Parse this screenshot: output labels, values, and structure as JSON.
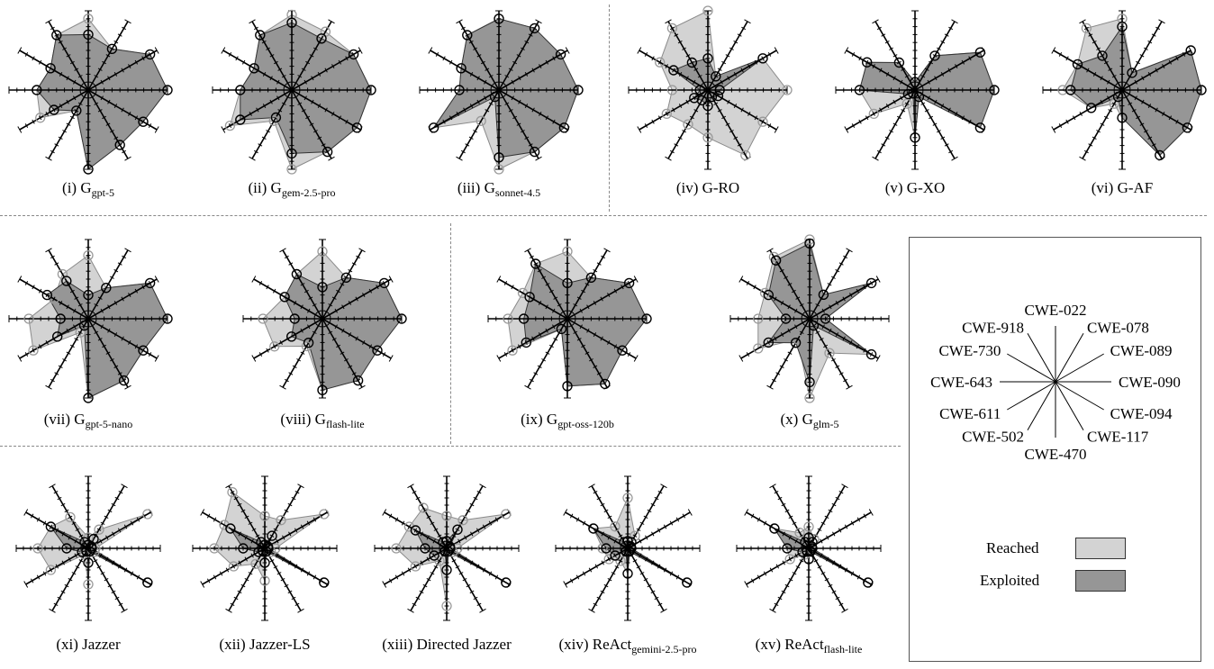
{
  "axes": [
    "CWE-022",
    "CWE-078",
    "CWE-089",
    "CWE-090",
    "CWE-094",
    "CWE-117",
    "CWE-470",
    "CWE-502",
    "CWE-611",
    "CWE-643",
    "CWE-730",
    "CWE-918"
  ],
  "legend": {
    "reached_label": "Reached",
    "exploited_label": "Exploited",
    "reached_color": "#d3d3d3",
    "exploited_color": "#969696"
  },
  "chart_data": [
    {
      "type": "radar",
      "roman": "(i)",
      "name": "G",
      "sub": "gpt-5",
      "reached": [
        0.9,
        0.6,
        0.9,
        1.0,
        0.8,
        0.8,
        1.0,
        0.3,
        0.7,
        0.65,
        0.55,
        0.8
      ],
      "exploited": [
        0.7,
        0.6,
        0.9,
        1.0,
        0.8,
        0.8,
        1.0,
        0.3,
        0.5,
        0.65,
        0.55,
        0.8
      ]
    },
    {
      "type": "radar",
      "roman": "(ii)",
      "name": "G",
      "sub": "gem-2.5-pro",
      "reached": [
        0.95,
        0.85,
        0.9,
        1.0,
        0.95,
        0.9,
        1.0,
        0.45,
        0.9,
        0.65,
        0.55,
        0.8
      ],
      "exploited": [
        0.85,
        0.75,
        0.9,
        1.0,
        0.95,
        0.9,
        0.8,
        0.4,
        0.75,
        0.65,
        0.55,
        0.8
      ]
    },
    {
      "type": "radar",
      "roman": "(iii)",
      "name": "G",
      "sub": "sonnet-4.5",
      "reached": [
        0.9,
        0.9,
        0.9,
        1.0,
        0.95,
        0.9,
        1.0,
        0.45,
        0.95,
        0.5,
        0.55,
        0.8
      ],
      "exploited": [
        0.9,
        0.9,
        0.9,
        1.0,
        0.95,
        0.9,
        0.85,
        0.1,
        0.95,
        0.5,
        0.55,
        0.8
      ]
    },
    {
      "type": "radar",
      "roman": "(iv)",
      "name": "G-RO",
      "sub": "",
      "reached": [
        1.0,
        0.2,
        0.8,
        1.0,
        0.8,
        0.95,
        0.6,
        0.5,
        0.6,
        0.45,
        0.7,
        0.9
      ],
      "exploited": [
        0.4,
        0.2,
        0.8,
        0.15,
        0.15,
        0.1,
        0.2,
        0.15,
        0.2,
        0.1,
        0.5,
        0.4
      ]
    },
    {
      "type": "radar",
      "roman": "(v)",
      "name": "G-XO",
      "sub": "",
      "reached": [
        0.1,
        0.5,
        0.95,
        1.0,
        0.95,
        0.1,
        0.6,
        0.2,
        0.6,
        0.7,
        0.7,
        0.4
      ],
      "exploited": [
        0.1,
        0.5,
        0.95,
        1.0,
        0.95,
        0.1,
        0.6,
        0.05,
        0.1,
        0.7,
        0.7,
        0.4
      ]
    },
    {
      "type": "radar",
      "roman": "(vi)",
      "name": "G-AF",
      "sub": "",
      "reached": [
        0.9,
        0.25,
        1.0,
        1.0,
        0.95,
        0.95,
        0.35,
        0.2,
        0.45,
        0.75,
        0.65,
        0.9
      ],
      "exploited": [
        0.8,
        0.25,
        1.0,
        1.0,
        0.95,
        0.95,
        0.35,
        0.1,
        0.45,
        0.65,
        0.65,
        0.5
      ]
    },
    {
      "type": "radar",
      "roman": "(vii)",
      "name": "G",
      "sub": "gpt-5-nano",
      "reached": [
        0.8,
        0.45,
        0.9,
        1.0,
        0.8,
        0.9,
        1.0,
        0.2,
        0.8,
        0.75,
        0.5,
        0.65
      ],
      "exploited": [
        0.3,
        0.45,
        0.9,
        1.0,
        0.8,
        0.9,
        1.0,
        0.1,
        0.45,
        0.35,
        0.6,
        0.55
      ]
    },
    {
      "type": "radar",
      "roman": "(viii)",
      "name": "G",
      "sub": "flash-lite",
      "reached": [
        0.85,
        0.6,
        0.9,
        1.0,
        0.8,
        0.9,
        0.9,
        0.4,
        0.7,
        0.75,
        0.55,
        0.65
      ],
      "exploited": [
        0.4,
        0.6,
        0.9,
        1.0,
        0.8,
        0.9,
        0.9,
        0.35,
        0.45,
        0.35,
        0.55,
        0.65
      ]
    },
    {
      "type": "radar",
      "roman": "(ix)",
      "name": "G",
      "sub": "gpt-oss-120b",
      "reached": [
        0.85,
        0.6,
        0.9,
        1.0,
        0.8,
        0.95,
        0.85,
        0.15,
        0.8,
        0.75,
        0.65,
        0.8
      ],
      "exploited": [
        0.45,
        0.6,
        0.9,
        1.0,
        0.8,
        0.95,
        0.85,
        0.15,
        0.6,
        0.55,
        0.55,
        0.8
      ]
    },
    {
      "type": "radar",
      "roman": "(x)",
      "name": "G",
      "sub": "glm-5",
      "reached": [
        1.0,
        0.35,
        0.9,
        0.2,
        0.9,
        0.5,
        1.0,
        0.3,
        0.75,
        0.65,
        0.65,
        0.9
      ],
      "exploited": [
        0.95,
        0.35,
        0.9,
        0.2,
        0.9,
        0.1,
        0.8,
        0.35,
        0.6,
        0.3,
        0.6,
        0.85
      ]
    },
    {
      "type": "radar",
      "roman": "(xi)",
      "name": "Jazzer",
      "sub": "",
      "reached": [
        0.15,
        0.3,
        0.95,
        0.1,
        0.1,
        0.05,
        0.5,
        0.1,
        0.6,
        0.7,
        0.6,
        0.5
      ],
      "exploited": [
        0.05,
        0.15,
        0.05,
        0.05,
        0.95,
        0.05,
        0.2,
        0.05,
        0.1,
        0.3,
        0.6,
        0.1
      ]
    },
    {
      "type": "radar",
      "roman": "(xii)",
      "name": "Jazzer-LS",
      "sub": "",
      "reached": [
        0.45,
        0.45,
        0.95,
        0.15,
        0.1,
        0.05,
        0.45,
        0.25,
        0.5,
        0.7,
        0.65,
        0.9
      ],
      "exploited": [
        0.05,
        0.2,
        0.05,
        0.05,
        0.95,
        0.05,
        0.2,
        0.05,
        0.1,
        0.3,
        0.55,
        0.1
      ]
    },
    {
      "type": "radar",
      "roman": "(xiii)",
      "name": "Directed Jazzer",
      "sub": "",
      "reached": [
        0.45,
        0.45,
        0.95,
        0.15,
        0.1,
        0.05,
        0.8,
        0.2,
        0.5,
        0.7,
        0.6,
        0.65
      ],
      "exploited": [
        0.1,
        0.3,
        0.05,
        0.05,
        0.95,
        0.05,
        0.3,
        0.05,
        0.2,
        0.3,
        0.5,
        0.1
      ]
    },
    {
      "type": "radar",
      "roman": "(xiv)",
      "name": "ReAct",
      "sub": "gemini-2.5-pro",
      "reached": [
        0.7,
        0.2,
        0.05,
        0.05,
        0.95,
        0.05,
        0.35,
        0.2,
        0.3,
        0.35,
        0.55,
        0.35
      ],
      "exploited": [
        0.1,
        0.1,
        0.05,
        0.05,
        0.95,
        0.05,
        0.35,
        0.05,
        0.2,
        0.3,
        0.55,
        0.1
      ]
    },
    {
      "type": "radar",
      "roman": "(xv)",
      "name": "ReAct",
      "sub": "flash-lite",
      "reached": [
        0.3,
        0.15,
        0.05,
        0.05,
        0.95,
        0.05,
        0.15,
        0.1,
        0.3,
        0.3,
        0.55,
        0.25
      ],
      "exploited": [
        0.15,
        0.1,
        0.05,
        0.05,
        0.95,
        0.05,
        0.15,
        0.05,
        0.1,
        0.3,
        0.55,
        0.1
      ]
    }
  ]
}
